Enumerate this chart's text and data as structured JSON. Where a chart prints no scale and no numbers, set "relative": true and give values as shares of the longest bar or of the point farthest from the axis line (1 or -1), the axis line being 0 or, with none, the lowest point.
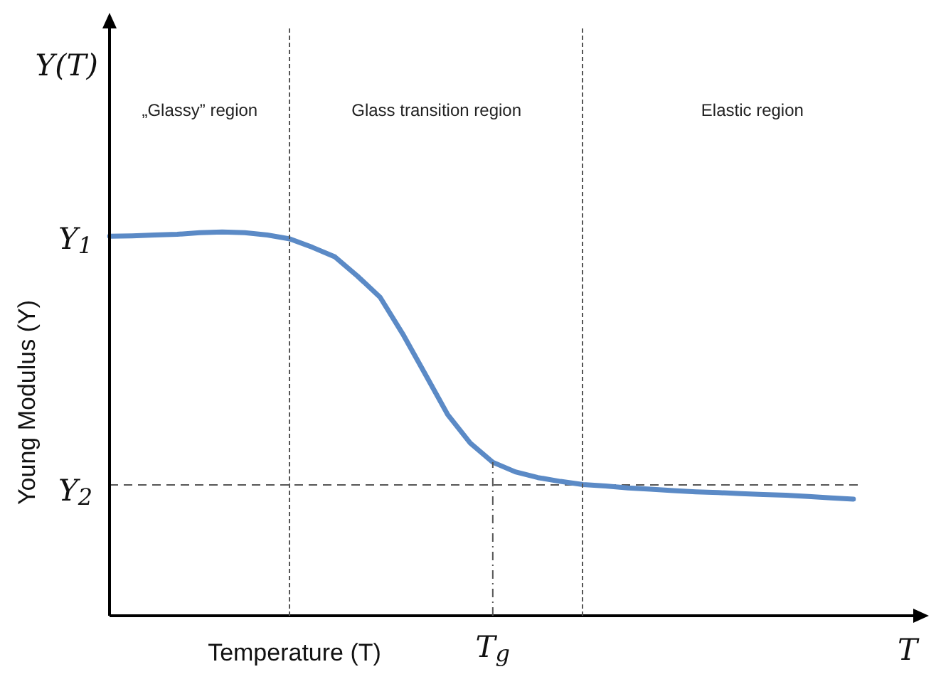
{
  "chart_data": {
    "type": "line",
    "relative": true,
    "xlabel": "Temperature (T)",
    "ylabel": "Young Modulus (Y)",
    "categories": [
      null,
      null,
      null,
      null,
      null,
      null,
      null,
      null,
      null,
      null,
      null,
      null,
      null,
      null,
      null,
      null,
      null,
      null,
      null,
      null,
      null,
      null,
      null,
      null,
      null,
      null,
      null,
      null,
      null,
      null,
      null,
      null,
      null,
      null
    ],
    "series": [
      {
        "color": "#5b8ac6",
        "values": [
          0.989,
          0.99,
          0.992,
          0.994,
          0.998,
          1,
          0.998,
          0.992,
          0.982,
          0.96,
          0.935,
          0.885,
          0.83,
          0.735,
          0.63,
          0.524,
          0.45,
          0.4,
          0.375,
          0.36,
          0.35,
          0.342,
          0.338,
          0.333,
          0.33,
          0.326,
          0.323,
          0.321,
          0.318,
          0.316,
          0.314,
          0.311,
          0.307,
          0.304
        ]
      }
    ],
    "ref_lines": [
      {
        "axis": "y",
        "value": 0.341,
        "label": "Y$_{2}$",
        "line_style": "dashed",
        "color": "#555555"
      }
    ],
    "annotations": [
      "Y(T)",
      "T",
      "Y$_{1}$",
      {
        "text": "T$_{g}$",
        "y": 0.4
      },
      "„Glassy” region",
      "Glass transition region",
      "Elastic region"
    ],
    "legend": false,
    "marker": "none",
    "line_style": "solid"
  }
}
